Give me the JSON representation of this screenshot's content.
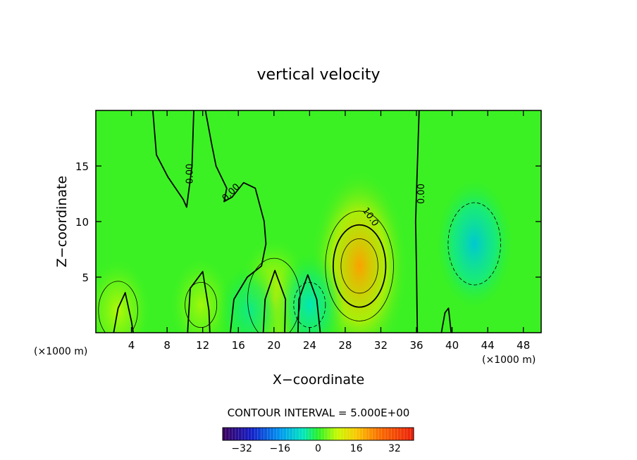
{
  "chart_data": {
    "type": "heatmap",
    "title": "vertical velocity",
    "xlabel": "X−coordinate",
    "ylabel": "Z−coordinate",
    "x_unit_left": "(×1000 m)",
    "x_unit_right": "(×1000 m)",
    "xlim": [
      0,
      50
    ],
    "ylim": [
      0,
      20
    ],
    "xticks": [
      4,
      8,
      12,
      16,
      20,
      24,
      28,
      32,
      36,
      40,
      44,
      48
    ],
    "yticks": [
      5,
      10,
      15
    ],
    "grid": false,
    "contour_interval_text": "CONTOUR INTERVAL = 5.000E+00",
    "contour_labels": [
      {
        "text": "0.00",
        "x": 10.6,
        "y": 14.3,
        "rotate": -90
      },
      {
        "text": "0.00",
        "x": 15.2,
        "y": 12.6,
        "rotate": -45
      },
      {
        "text": "10.0",
        "x": 30.8,
        "y": 10.4,
        "rotate": 55
      },
      {
        "text": "0.00",
        "x": 36.6,
        "y": 12.5,
        "rotate": -90
      }
    ],
    "features": [
      {
        "kind": "updraft",
        "x": 29.6,
        "z": 6.0,
        "peak": 20
      },
      {
        "kind": "updraft",
        "x": 20.0,
        "z": 3.0,
        "peak": 10
      },
      {
        "kind": "updraft",
        "x": 2.5,
        "z": 2.0,
        "peak": 7
      },
      {
        "kind": "updraft",
        "x": 11.8,
        "z": 2.5,
        "peak": 6
      },
      {
        "kind": "downdraft",
        "x": 42.5,
        "z": 8.0,
        "peak": -10
      },
      {
        "kind": "downdraft",
        "x": 24.0,
        "z": 2.5,
        "peak": -6
      },
      {
        "kind": "downdraft",
        "x": 17.3,
        "z": 2.0,
        "peak": -4
      }
    ],
    "colorbar": {
      "min": -40,
      "max": 40,
      "ticks": [
        -32,
        -16,
        0,
        16,
        32
      ],
      "tick_labels": [
        "−32",
        "−16",
        "0",
        "16",
        "32"
      ]
    }
  }
}
